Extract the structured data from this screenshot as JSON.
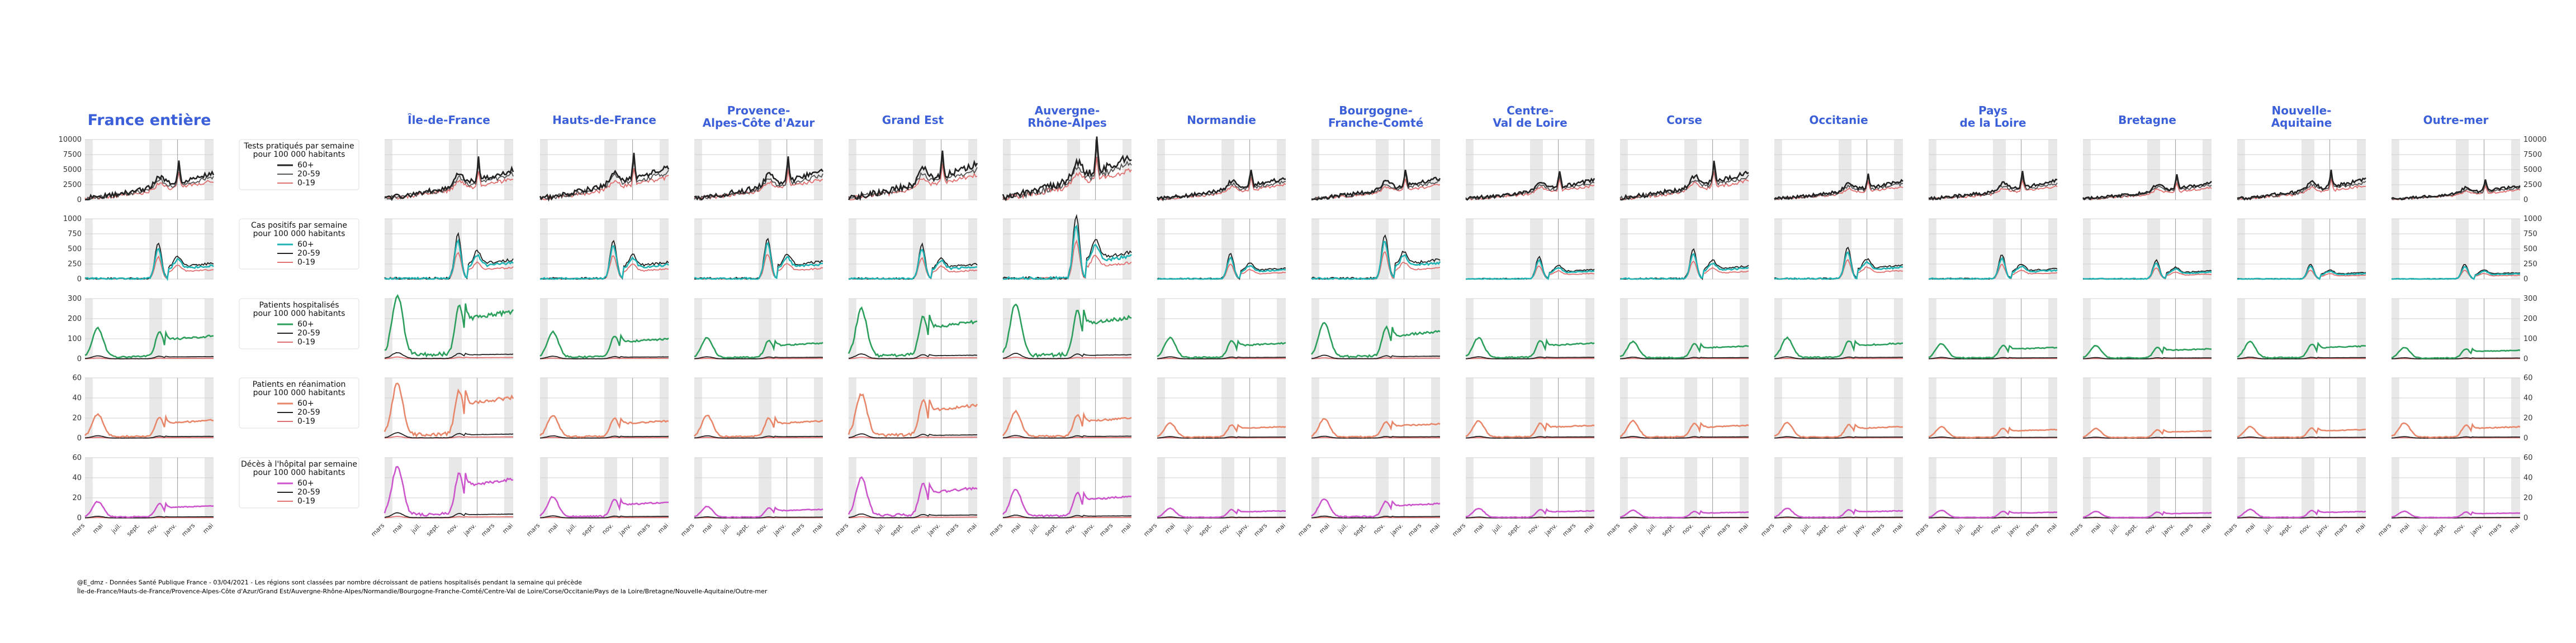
{
  "chart_data": {
    "type": "line",
    "panel_titles": [
      "France entière",
      "Île-de-France",
      "Hauts-de-France",
      "Provence-\nAlpes-Côte d'Azur",
      "Grand Est",
      "Auvergne-\nRhône-Alpes",
      "Normandie",
      "Bourgogne-\nFranche-Comté",
      "Centre-\nVal de Loire",
      "Corse",
      "Occitanie",
      "Pays\nde la Loire",
      "Bretagne",
      "Nouvelle-\nAquitaine",
      "Outre-mer"
    ],
    "x_tick_labels": [
      "mars",
      "mai",
      "juil.",
      "sept.",
      "nov.",
      "janv.",
      "mars",
      "mai"
    ],
    "series_colors": {
      "tests": {
        "60+": "#222222",
        "20-59": "#555555",
        "0-19": "#e07070"
      },
      "cas": {
        "60+": "#1fb3b3",
        "20-59": "#222222",
        "0-19": "#e07070"
      },
      "hosp": {
        "60+": "#2a9e5a",
        "20-59": "#222222",
        "0-19": "#e07070"
      },
      "rea": {
        "60+": "#e8866a",
        "20-59": "#222222",
        "0-19": "#e07070"
      },
      "dc": {
        "60+": "#cc55cc",
        "20-59": "#222222",
        "0-19": "#e07070"
      }
    },
    "rows": [
      {
        "key": "tests",
        "legend_title": "Tests pratiqués par semaine\npour 100 000 habitants",
        "legend_items": [
          "60+",
          "20-59",
          "0-19"
        ],
        "yticks": [
          "0",
          "2500",
          "5000",
          "7500",
          "10000"
        ],
        "ymax": 10000
      },
      {
        "key": "cas",
        "legend_title": "Cas positifs par semaine\npour 100 000 habitants",
        "legend_items": [
          "60+",
          "20-59",
          "0-19"
        ],
        "yticks": [
          "0",
          "250",
          "500",
          "750",
          "1000"
        ],
        "ymax": 1000
      },
      {
        "key": "hosp",
        "legend_title": "Patients hospitalisés\npour 100 000 habitants",
        "legend_items": [
          "60+",
          "20-59",
          "0-19"
        ],
        "yticks": [
          "0",
          "100",
          "200",
          "300"
        ],
        "ymax": 300
      },
      {
        "key": "rea",
        "legend_title": "Patients en réanimation\npour 100 000 habitants",
        "legend_items": [
          "60+",
          "20-59",
          "0-19"
        ],
        "yticks": [
          "0",
          "20",
          "40",
          "60"
        ],
        "ymax": 60
      },
      {
        "key": "dc",
        "legend_title": "Décès à l'hôpital par semaine\npour 100 000 habitants",
        "legend_items": [
          "60+",
          "20-59",
          "0-19"
        ],
        "yticks": [
          "0",
          "20",
          "40",
          "60"
        ],
        "ymax": 60
      }
    ],
    "peaks": {
      "tests": [
        [
          6500,
          1.0
        ],
        [
          7200,
          1.0
        ],
        [
          7800,
          1.0
        ],
        [
          7000,
          1.0
        ],
        [
          8600,
          1.0
        ],
        [
          10500,
          1.0
        ],
        [
          5200,
          1.0
        ],
        [
          5200,
          1.0
        ],
        [
          4800,
          1.0
        ],
        [
          6600,
          1.0
        ],
        [
          4500,
          1.0
        ],
        [
          4600,
          1.0
        ],
        [
          4200,
          1.0
        ],
        [
          4900,
          1.0
        ],
        [
          3400,
          1.0
        ]
      ],
      "cas": [
        [
          640,
          1.0
        ],
        [
          780,
          1.0
        ],
        [
          680,
          1.0
        ],
        [
          720,
          1.0
        ],
        [
          600,
          1.0
        ],
        [
          1270,
          1.0
        ],
        [
          440,
          1.0
        ],
        [
          780,
          1.0
        ],
        [
          380,
          1.0
        ],
        [
          520,
          1.0
        ],
        [
          560,
          1.0
        ],
        [
          420,
          1.0
        ],
        [
          330,
          1.0
        ],
        [
          260,
          1.0
        ],
        [
          260,
          1.0
        ]
      ],
      "hosp": [
        [
          160,
          1.0
        ],
        [
          360,
          1.0
        ],
        [
          140,
          1.0
        ],
        [
          110,
          1.0
        ],
        [
          260,
          1.0
        ],
        [
          290,
          1.0
        ],
        [
          110,
          1.0
        ],
        [
          190,
          1.0
        ],
        [
          110,
          1.0
        ],
        [
          90,
          1.0
        ],
        [
          110,
          1.0
        ],
        [
          80,
          1.0
        ],
        [
          70,
          1.0
        ],
        [
          90,
          1.0
        ],
        [
          60,
          1.0
        ]
      ],
      "rea": [
        [
          25,
          1.0
        ],
        [
          57,
          1.0
        ],
        [
          24,
          1.0
        ],
        [
          24,
          1.0
        ],
        [
          46,
          1.0
        ],
        [
          28,
          1.0
        ],
        [
          16,
          1.0
        ],
        [
          20,
          1.0
        ],
        [
          18,
          1.0
        ],
        [
          18,
          1.0
        ],
        [
          16,
          1.0
        ],
        [
          12,
          1.0
        ],
        [
          10,
          1.0
        ],
        [
          12,
          1.0
        ],
        [
          16,
          1.0
        ]
      ],
      "dc": [
        [
          17,
          1.0
        ],
        [
          54,
          1.0
        ],
        [
          22,
          1.0
        ],
        [
          12,
          1.0
        ],
        [
          42,
          1.0
        ],
        [
          30,
          1.0
        ],
        [
          10,
          1.0
        ],
        [
          20,
          1.0
        ],
        [
          10,
          1.0
        ],
        [
          8,
          1.0
        ],
        [
          10,
          1.0
        ],
        [
          8,
          1.0
        ],
        [
          7,
          1.0
        ],
        [
          9,
          1.0
        ],
        [
          7,
          1.0
        ]
      ]
    }
  },
  "footer": {
    "line1": "@E_dmz - Données Santé Publique France - 03/04/2021 - Les régions sont classées par nombre décroissant de patiens hospitalisés pendant la semaine qui précède",
    "line2": "Île-de-France/Hauts-de-France/Provence-Alpes-Côte d'Azur/Grand Est/Auvergne-Rhône-Alpes/Normandie/Bourgogne-Franche-Comté/Centre-Val de Loire/Corse/Occitanie/Pays de la Loire/Bretagne/Nouvelle-Aquitaine/Outre-mer"
  }
}
